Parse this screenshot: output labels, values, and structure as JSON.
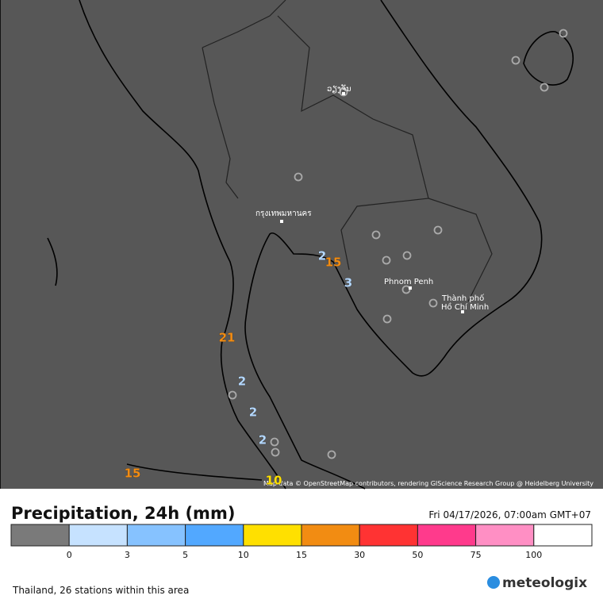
{
  "map": {
    "places": [
      "ວຽງຈັນ",
      "กรุงเทพมหานคร",
      "Phnom Penh",
      "Thành phố",
      "Hồ Chí Minh"
    ],
    "stations": [
      {
        "value": 2,
        "color": "#b4d8ff"
      },
      {
        "value": 15,
        "color": "#f28c12"
      },
      {
        "value": 3,
        "color": "#b4d8ff"
      },
      {
        "value": 21,
        "color": "#f28c12"
      },
      {
        "value": 2,
        "color": "#b4d8ff"
      },
      {
        "value": 2,
        "color": "#b4d8ff"
      },
      {
        "value": 2,
        "color": "#b4d8ff"
      },
      {
        "value": 15,
        "color": "#f28c12"
      },
      {
        "value": 10,
        "color": "#ffe000"
      }
    ],
    "attribution": "Map data © OpenStreetMap contributors, rendering GIScience Research Group @ Heidelberg University"
  },
  "header": {
    "title": "Precipitation, 24h (mm)",
    "time": "Fri 04/17/2026, 07:00am GMT+07"
  },
  "legend": {
    "colors": [
      "#7a7a7a",
      "#c6e2ff",
      "#86c2ff",
      "#52a8ff",
      "#ffe000",
      "#f28c12",
      "#ff3333",
      "#ff3a8c",
      "#ff8fc4",
      "#ffffff"
    ],
    "ticks": [
      0,
      3,
      5,
      10,
      15,
      30,
      50,
      75,
      100
    ]
  },
  "footer": {
    "note": "Thailand, 26 stations within this area",
    "brand": "meteologix"
  }
}
